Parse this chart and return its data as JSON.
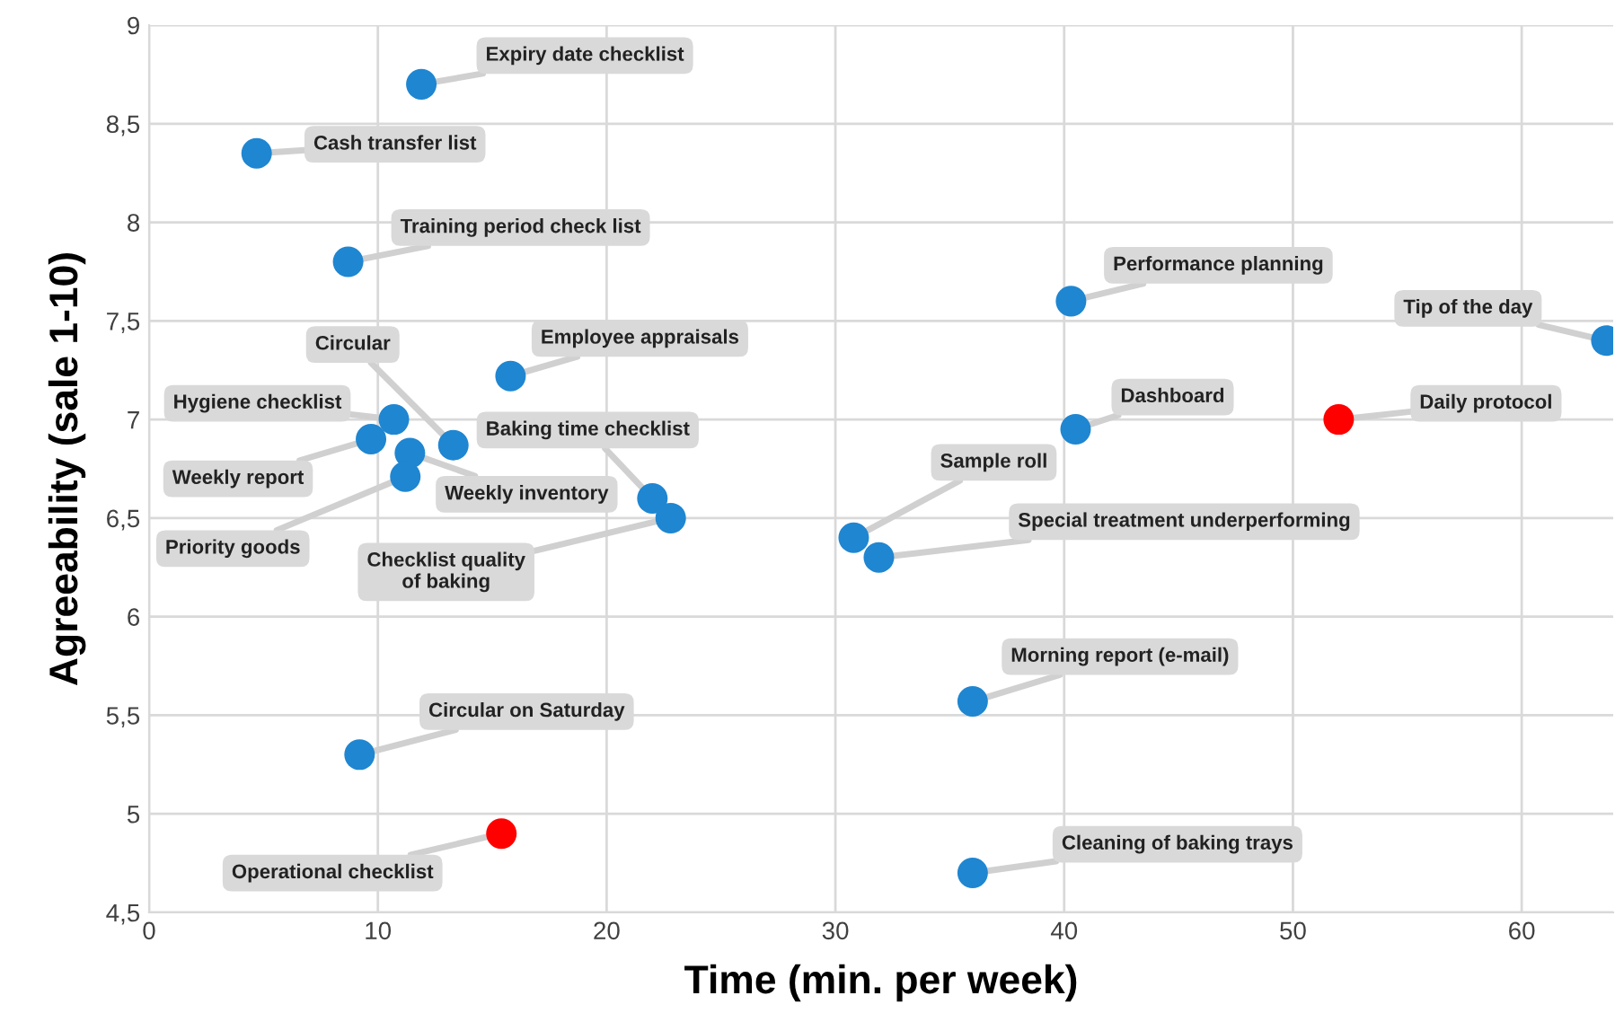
{
  "chart_data": {
    "type": "scatter",
    "xlabel": "Time (min. per week)",
    "ylabel": "Agreeability (sale 1-10)",
    "x": [
      11.9,
      4.7,
      8.7,
      15.8,
      10.7,
      9.7,
      13.3,
      11.4,
      11.2,
      22.0,
      22.8,
      9.2,
      15.4,
      40.3,
      63.7,
      40.5,
      52.0,
      30.8,
      31.9,
      36.0,
      36.0
    ],
    "values": [
      8.7,
      8.35,
      7.8,
      7.22,
      7.0,
      6.9,
      6.87,
      6.83,
      6.71,
      6.6,
      6.5,
      5.3,
      4.9,
      7.6,
      7.4,
      6.95,
      7.0,
      6.4,
      6.3,
      5.57,
      4.7
    ],
    "colors": [
      "#1f86d1",
      "#1f86d1",
      "#1f86d1",
      "#1f86d1",
      "#1f86d1",
      "#1f86d1",
      "#1f86d1",
      "#1f86d1",
      "#1f86d1",
      "#1f86d1",
      "#1f86d1",
      "#1f86d1",
      "#ff0000",
      "#1f86d1",
      "#1f86d1",
      "#1f86d1",
      "#ff0000",
      "#1f86d1",
      "#1f86d1",
      "#1f86d1",
      "#1f86d1"
    ],
    "annotations": [
      {
        "text": "Expiry date checklist",
        "x": 11.9,
        "y": 8.7
      },
      {
        "text": "Cash transfer list",
        "x": 4.7,
        "y": 8.35
      },
      {
        "text": "Training period check list",
        "x": 8.7,
        "y": 7.8
      },
      {
        "text": "Employee appraisals",
        "x": 15.8,
        "y": 7.22
      },
      {
        "text": "Hygiene checklist",
        "x": 10.7,
        "y": 7.0
      },
      {
        "text": "Weekly report",
        "x": 9.7,
        "y": 6.9
      },
      {
        "text": "Circular",
        "x": 13.3,
        "y": 6.87
      },
      {
        "text": "Weekly inventory",
        "x": 11.4,
        "y": 6.83
      },
      {
        "text": "Priority goods",
        "x": 11.2,
        "y": 6.71
      },
      {
        "text": "Baking time checklist",
        "x": 22.0,
        "y": 6.6
      },
      {
        "text": "Checklist quality\nof baking",
        "x": 22.8,
        "y": 6.5
      },
      {
        "text": "Circular on Saturday",
        "x": 9.2,
        "y": 5.3
      },
      {
        "text": "Operational checklist",
        "x": 15.4,
        "y": 4.9
      },
      {
        "text": "Performance planning",
        "x": 40.3,
        "y": 7.6
      },
      {
        "text": "Tip of the day",
        "x": 63.7,
        "y": 7.4
      },
      {
        "text": "Dashboard",
        "x": 40.5,
        "y": 6.95
      },
      {
        "text": "Daily protocol",
        "x": 52.0,
        "y": 7.0
      },
      {
        "text": "Sample roll",
        "x": 30.8,
        "y": 6.4
      },
      {
        "text": "Special treatment underperforming",
        "x": 31.9,
        "y": 6.3
      },
      {
        "text": "Morning report (e-mail)",
        "x": 36.0,
        "y": 5.57
      },
      {
        "text": "Cleaning of baking trays",
        "x": 36.0,
        "y": 4.7
      }
    ],
    "xlim": [
      0,
      64
    ],
    "xticks": [
      0,
      10,
      20,
      30,
      40,
      50,
      60
    ],
    "ylim": [
      4.5,
      9
    ],
    "yticks": [
      {
        "value": 4.5,
        "label": "4,5"
      },
      5,
      {
        "value": 5.5,
        "label": "5,5"
      },
      6,
      {
        "value": 6.5,
        "label": "6,5"
      },
      7,
      {
        "value": 7.5,
        "label": "7,5"
      },
      8,
      {
        "value": 8.5,
        "label": "8,5"
      },
      9
    ],
    "grid": true,
    "marker": "circle"
  }
}
